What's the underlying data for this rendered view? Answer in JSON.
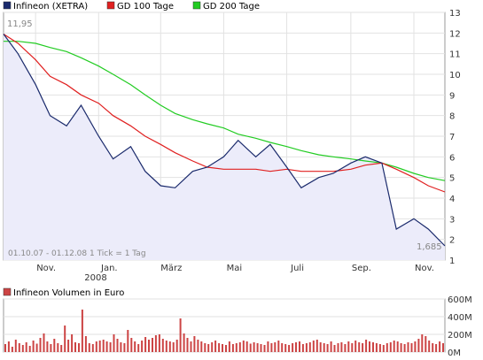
{
  "chart_data": [
    {
      "type": "line",
      "title": "",
      "legend": [
        {
          "name": "Infineon (XETRA)",
          "color": "#1a2a6c"
        },
        {
          "name": "GD 100 Tage",
          "color": "#e02020"
        },
        {
          "name": "GD 200 Tage",
          "color": "#22cc22"
        }
      ],
      "legend_placement": "top-left",
      "ylim": [
        1,
        13
      ],
      "y_ticks": [
        "1",
        "2",
        "3",
        "4",
        "5",
        "6",
        "7",
        "8",
        "9",
        "10",
        "11",
        "12",
        "13"
      ],
      "x_tick_labels": [
        "Nov.",
        "Jan.",
        "März",
        "Mai",
        "Juli",
        "Sep.",
        "Nov."
      ],
      "x_year_label": "2008",
      "start_value_label": "11,95",
      "end_value_label": "1,685",
      "date_range_note": "01.10.07 - 01.12.08   1 Tick = 1 Tag",
      "grid": true,
      "x": [
        "2007-10-01",
        "2007-10-15",
        "2007-11-01",
        "2007-11-15",
        "2007-12-01",
        "2007-12-15",
        "2008-01-01",
        "2008-01-15",
        "2008-02-01",
        "2008-02-15",
        "2008-03-01",
        "2008-03-15",
        "2008-04-01",
        "2008-04-15",
        "2008-05-01",
        "2008-05-15",
        "2008-06-01",
        "2008-06-15",
        "2008-07-01",
        "2008-07-15",
        "2008-08-01",
        "2008-08-15",
        "2008-09-01",
        "2008-09-15",
        "2008-10-01",
        "2008-10-15",
        "2008-11-01",
        "2008-11-15",
        "2008-12-01"
      ],
      "series": [
        {
          "name": "Infineon (XETRA)",
          "color": "#1a2a6c",
          "fill": "#ececfa",
          "values": [
            11.95,
            11.0,
            9.5,
            8.0,
            7.5,
            8.5,
            7.0,
            5.9,
            6.5,
            5.3,
            4.6,
            4.5,
            5.3,
            5.5,
            6.0,
            6.8,
            6.0,
            6.6,
            5.5,
            4.5,
            5.0,
            5.2,
            5.7,
            6.0,
            5.7,
            2.5,
            3.0,
            2.5,
            1.685
          ]
        },
        {
          "name": "GD 100 Tage",
          "color": "#e02020",
          "values": [
            11.95,
            11.5,
            10.7,
            9.9,
            9.5,
            9.0,
            8.6,
            8.0,
            7.5,
            7.0,
            6.6,
            6.2,
            5.8,
            5.5,
            5.4,
            5.4,
            5.4,
            5.3,
            5.4,
            5.3,
            5.3,
            5.3,
            5.4,
            5.6,
            5.7,
            5.4,
            5.0,
            4.6,
            4.3
          ]
        },
        {
          "name": "GD 200 Tage",
          "color": "#22cc22",
          "values": [
            11.6,
            11.6,
            11.5,
            11.3,
            11.1,
            10.8,
            10.4,
            10.0,
            9.5,
            9.0,
            8.5,
            8.1,
            7.8,
            7.6,
            7.4,
            7.1,
            6.9,
            6.7,
            6.5,
            6.3,
            6.1,
            6.0,
            5.9,
            5.8,
            5.7,
            5.5,
            5.2,
            5.0,
            4.85
          ]
        }
      ]
    },
    {
      "type": "bar",
      "title": "Infineon Volumen in Euro",
      "legend": [
        {
          "name": "Infineon Volumen in Euro",
          "color": "#cc4444"
        }
      ],
      "ylim": [
        0,
        600
      ],
      "y_ticks": [
        "0M",
        "200M",
        "400M",
        "600M"
      ],
      "unit": "M",
      "values": [
        90,
        120,
        60,
        140,
        100,
        80,
        110,
        70,
        130,
        95,
        160,
        210,
        120,
        90,
        150,
        100,
        80,
        300,
        140,
        200,
        110,
        100,
        480,
        180,
        100,
        90,
        120,
        130,
        140,
        120,
        110,
        200,
        150,
        110,
        100,
        250,
        160,
        120,
        90,
        130,
        170,
        140,
        160,
        190,
        200,
        150,
        130,
        120,
        110,
        140,
        380,
        210,
        160,
        120,
        180,
        140,
        120,
        100,
        90,
        110,
        130,
        100,
        90,
        80,
        120,
        90,
        100,
        110,
        130,
        120,
        95,
        110,
        100,
        90,
        80,
        120,
        100,
        110,
        130,
        100,
        90,
        80,
        100,
        110,
        120,
        90,
        100,
        110,
        130,
        140,
        110,
        100,
        90,
        120,
        80,
        100,
        110,
        90,
        120,
        100,
        130,
        110,
        100,
        140,
        120,
        110,
        100,
        90,
        80,
        100,
        110,
        130,
        120,
        100,
        90,
        110,
        100,
        120,
        150,
        200,
        180,
        130,
        100,
        90,
        120,
        100
      ]
    }
  ]
}
